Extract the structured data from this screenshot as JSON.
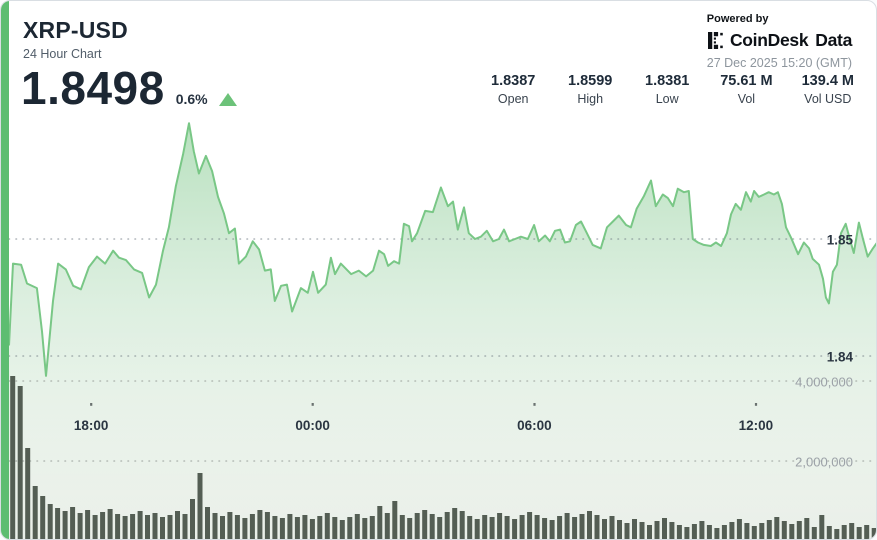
{
  "header": {
    "title": "XRP-USD",
    "subtitle": "24 Hour Chart",
    "price": "1.8498",
    "change_percent": "0.6%",
    "timestamp": "27 Dec 2025 15:20 (GMT)"
  },
  "branding": {
    "powered_by": "Powered by",
    "brand": "CoinDesk",
    "brand_suffix": "Data"
  },
  "stats": {
    "items": [
      {
        "value": "1.8387",
        "label": "Open"
      },
      {
        "value": "1.8599",
        "label": "High"
      },
      {
        "value": "1.8381",
        "label": "Low"
      },
      {
        "value": "75.61 M",
        "label": "Vol"
      },
      {
        "value": "139.4 M",
        "label": "Vol USD"
      }
    ]
  },
  "colors": {
    "accent_green": "#5dbd71",
    "line_green": "#79c786",
    "fill_green_top": "#b4dfbb",
    "volume_bar": "#545e54",
    "price_grid_label": "#2b3642",
    "volume_grid_label": "#9ba1a7",
    "up_triangle": "#6cc279"
  },
  "chart_data": {
    "type": "area",
    "title": "XRP-USD 24 Hour Chart",
    "legend": false,
    "grid": "dotted-horizontal",
    "x_axis": {
      "unit": "hours_from_window_start",
      "range": [
        0,
        23.7
      ],
      "ticks": [
        {
          "t": 2.24,
          "label": "18:00"
        },
        {
          "t": 8.28,
          "label": "00:00"
        },
        {
          "t": 14.33,
          "label": "06:00"
        },
        {
          "t": 20.37,
          "label": "12:00"
        }
      ]
    },
    "price_axis": {
      "open": 1.8387,
      "high": 1.8599,
      "low": 1.8381,
      "last": 1.8498,
      "ticks": [
        {
          "value": 1.85,
          "label": "1.85"
        },
        {
          "value": 1.84,
          "label": "1.84"
        }
      ]
    },
    "volume_axis": {
      "total_volume": "75.61 M",
      "total_volume_usd": "139.4 M",
      "ticks": [
        {
          "value": 4000000,
          "label": "4,000,000"
        },
        {
          "value": 2000000,
          "label": "2,000,000"
        }
      ]
    },
    "price_points": [
      [
        0.0,
        1.8409
      ],
      [
        0.11,
        1.8479
      ],
      [
        0.33,
        1.8478
      ],
      [
        0.49,
        1.8462
      ],
      [
        0.76,
        1.8458
      ],
      [
        0.9,
        1.8421
      ],
      [
        1.01,
        1.8383
      ],
      [
        1.2,
        1.8447
      ],
      [
        1.34,
        1.8479
      ],
      [
        1.55,
        1.8474
      ],
      [
        1.75,
        1.846
      ],
      [
        1.96,
        1.8457
      ],
      [
        2.18,
        1.8476
      ],
      [
        2.4,
        1.8485
      ],
      [
        2.62,
        1.8479
      ],
      [
        2.84,
        1.849
      ],
      [
        3.0,
        1.8484
      ],
      [
        3.19,
        1.8482
      ],
      [
        3.41,
        1.8474
      ],
      [
        3.63,
        1.8471
      ],
      [
        3.82,
        1.845
      ],
      [
        4.01,
        1.8461
      ],
      [
        4.2,
        1.849
      ],
      [
        4.36,
        1.851
      ],
      [
        4.55,
        1.8545
      ],
      [
        4.75,
        1.8573
      ],
      [
        4.91,
        1.8599
      ],
      [
        5.04,
        1.8575
      ],
      [
        5.18,
        1.8556
      ],
      [
        5.37,
        1.8571
      ],
      [
        5.54,
        1.8558
      ],
      [
        5.7,
        1.8536
      ],
      [
        5.86,
        1.8522
      ],
      [
        6.0,
        1.8505
      ],
      [
        6.16,
        1.8509
      ],
      [
        6.27,
        1.8479
      ],
      [
        6.46,
        1.8485
      ],
      [
        6.65,
        1.8498
      ],
      [
        6.82,
        1.8491
      ],
      [
        6.98,
        1.8473
      ],
      [
        7.14,
        1.8474
      ],
      [
        7.25,
        1.8447
      ],
      [
        7.42,
        1.846
      ],
      [
        7.58,
        1.8461
      ],
      [
        7.72,
        1.8438
      ],
      [
        7.96,
        1.8458
      ],
      [
        8.15,
        1.8454
      ],
      [
        8.29,
        1.8472
      ],
      [
        8.43,
        1.8454
      ],
      [
        8.64,
        1.8461
      ],
      [
        8.78,
        1.8484
      ],
      [
        8.89,
        1.847
      ],
      [
        9.05,
        1.8479
      ],
      [
        9.33,
        1.847
      ],
      [
        9.54,
        1.8473
      ],
      [
        9.74,
        1.8468
      ],
      [
        9.93,
        1.8473
      ],
      [
        10.09,
        1.849
      ],
      [
        10.23,
        1.8487
      ],
      [
        10.34,
        1.8477
      ],
      [
        10.5,
        1.8481
      ],
      [
        10.64,
        1.8479
      ],
      [
        10.77,
        1.8513
      ],
      [
        10.91,
        1.8511
      ],
      [
        10.99,
        1.8498
      ],
      [
        11.13,
        1.8505
      ],
      [
        11.35,
        1.8524
      ],
      [
        11.56,
        1.8523
      ],
      [
        11.78,
        1.8544
      ],
      [
        11.97,
        1.8528
      ],
      [
        12.11,
        1.8532
      ],
      [
        12.24,
        1.8508
      ],
      [
        12.41,
        1.8527
      ],
      [
        12.54,
        1.8505
      ],
      [
        12.71,
        1.85
      ],
      [
        12.87,
        1.8502
      ],
      [
        13.03,
        1.8507
      ],
      [
        13.2,
        1.8498
      ],
      [
        13.36,
        1.85
      ],
      [
        13.5,
        1.8508
      ],
      [
        13.64,
        1.8498
      ],
      [
        13.8,
        1.85
      ],
      [
        13.96,
        1.8502
      ],
      [
        14.15,
        1.85
      ],
      [
        14.32,
        1.8512
      ],
      [
        14.45,
        1.8498
      ],
      [
        14.62,
        1.8503
      ],
      [
        14.75,
        1.8498
      ],
      [
        14.89,
        1.8507
      ],
      [
        15.03,
        1.8508
      ],
      [
        15.16,
        1.8497
      ],
      [
        15.3,
        1.8498
      ],
      [
        15.46,
        1.8512
      ],
      [
        15.6,
        1.8515
      ],
      [
        15.76,
        1.8505
      ],
      [
        15.92,
        1.8495
      ],
      [
        16.14,
        1.8492
      ],
      [
        16.31,
        1.851
      ],
      [
        16.47,
        1.8515
      ],
      [
        16.63,
        1.852
      ],
      [
        16.83,
        1.8512
      ],
      [
        16.96,
        1.851
      ],
      [
        17.12,
        1.8526
      ],
      [
        17.32,
        1.8537
      ],
      [
        17.51,
        1.855
      ],
      [
        17.64,
        1.8528
      ],
      [
        17.83,
        1.8538
      ],
      [
        17.97,
        1.8535
      ],
      [
        18.11,
        1.8528
      ],
      [
        18.24,
        1.8543
      ],
      [
        18.41,
        1.854
      ],
      [
        18.54,
        1.8541
      ],
      [
        18.65,
        1.85
      ],
      [
        18.79,
        1.8497
      ],
      [
        18.95,
        1.8495
      ],
      [
        19.14,
        1.8494
      ],
      [
        19.28,
        1.8497
      ],
      [
        19.42,
        1.8494
      ],
      [
        19.58,
        1.8505
      ],
      [
        19.69,
        1.8521
      ],
      [
        19.82,
        1.853
      ],
      [
        19.96,
        1.8525
      ],
      [
        20.1,
        1.854
      ],
      [
        20.23,
        1.8532
      ],
      [
        20.32,
        1.8541
      ],
      [
        20.45,
        1.8536
      ],
      [
        20.59,
        1.8538
      ],
      [
        20.72,
        1.854
      ],
      [
        20.86,
        1.8538
      ],
      [
        20.97,
        1.854
      ],
      [
        21.08,
        1.853
      ],
      [
        21.19,
        1.851
      ],
      [
        21.33,
        1.8501
      ],
      [
        21.52,
        1.8487
      ],
      [
        21.68,
        1.8497
      ],
      [
        21.82,
        1.8492
      ],
      [
        21.92,
        1.8483
      ],
      [
        22.09,
        1.8478
      ],
      [
        22.2,
        1.8466
      ],
      [
        22.28,
        1.845
      ],
      [
        22.36,
        1.8445
      ],
      [
        22.47,
        1.8472
      ],
      [
        22.58,
        1.8478
      ],
      [
        22.69,
        1.8505
      ],
      [
        22.82,
        1.8513
      ],
      [
        22.93,
        1.85
      ],
      [
        23.04,
        1.8488
      ],
      [
        23.18,
        1.8514
      ],
      [
        23.29,
        1.85
      ],
      [
        23.42,
        1.8485
      ],
      [
        23.56,
        1.8492
      ],
      [
        23.7,
        1.8498
      ]
    ],
    "volume_bars": [
      4125000,
      3875000,
      2325000,
      1375000,
      1125000,
      925000,
      825000,
      750000,
      850000,
      700000,
      775000,
      650000,
      725000,
      800000,
      675000,
      625000,
      675000,
      750000,
      650000,
      700000,
      600000,
      650000,
      750000,
      675000,
      1050000,
      1700000,
      850000,
      700000,
      625000,
      725000,
      650000,
      575000,
      675000,
      775000,
      725000,
      625000,
      575000,
      675000,
      600000,
      650000,
      550000,
      625000,
      700000,
      600000,
      525000,
      600000,
      675000,
      575000,
      625000,
      875000,
      700000,
      1000000,
      650000,
      575000,
      700000,
      775000,
      675000,
      600000,
      725000,
      825000,
      750000,
      625000,
      550000,
      650000,
      600000,
      700000,
      625000,
      550000,
      650000,
      725000,
      650000,
      575000,
      525000,
      625000,
      700000,
      600000,
      675000,
      750000,
      650000,
      550000,
      625000,
      525000,
      450000,
      550000,
      475000,
      400000,
      500000,
      575000,
      475000,
      400000,
      350000,
      425000,
      500000,
      400000,
      325000,
      400000,
      475000,
      550000,
      450000,
      375000,
      450000,
      525000,
      600000,
      500000,
      425000,
      500000,
      575000,
      350000,
      650000,
      375000,
      300000,
      400000,
      450000,
      350000,
      400000,
      325000
    ]
  }
}
